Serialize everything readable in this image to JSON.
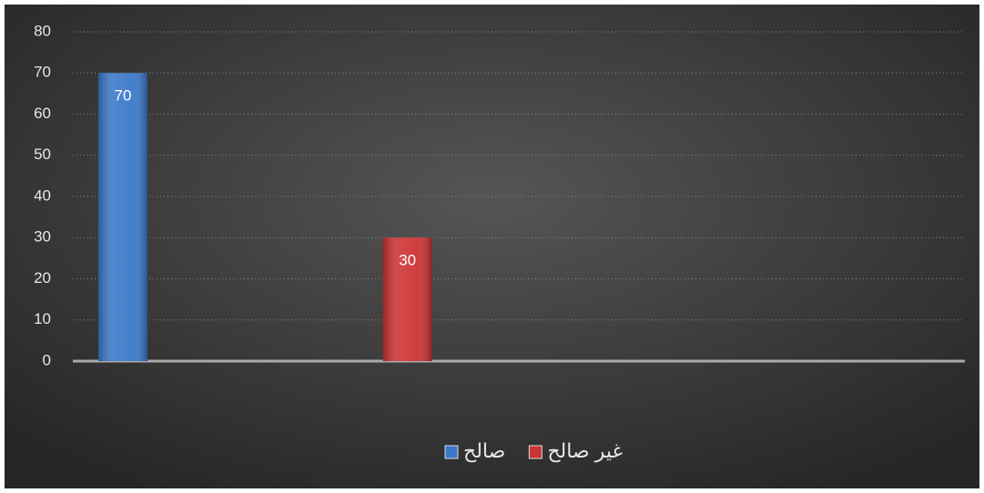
{
  "chart_data": {
    "type": "bar",
    "categories": [
      null,
      null,
      null
    ],
    "series": [
      {
        "name": "صالح",
        "color": "#3a78c9",
        "values": [
          70,
          null,
          null
        ]
      },
      {
        "name": "غير صالح",
        "color": "#cc3333",
        "values": [
          null,
          30,
          null
        ]
      }
    ],
    "ylim": [
      0,
      80
    ],
    "yticks": [
      0,
      10,
      20,
      30,
      40,
      50,
      60,
      70,
      80
    ],
    "grid": true,
    "legend": "bottom",
    "data_labels": true
  }
}
